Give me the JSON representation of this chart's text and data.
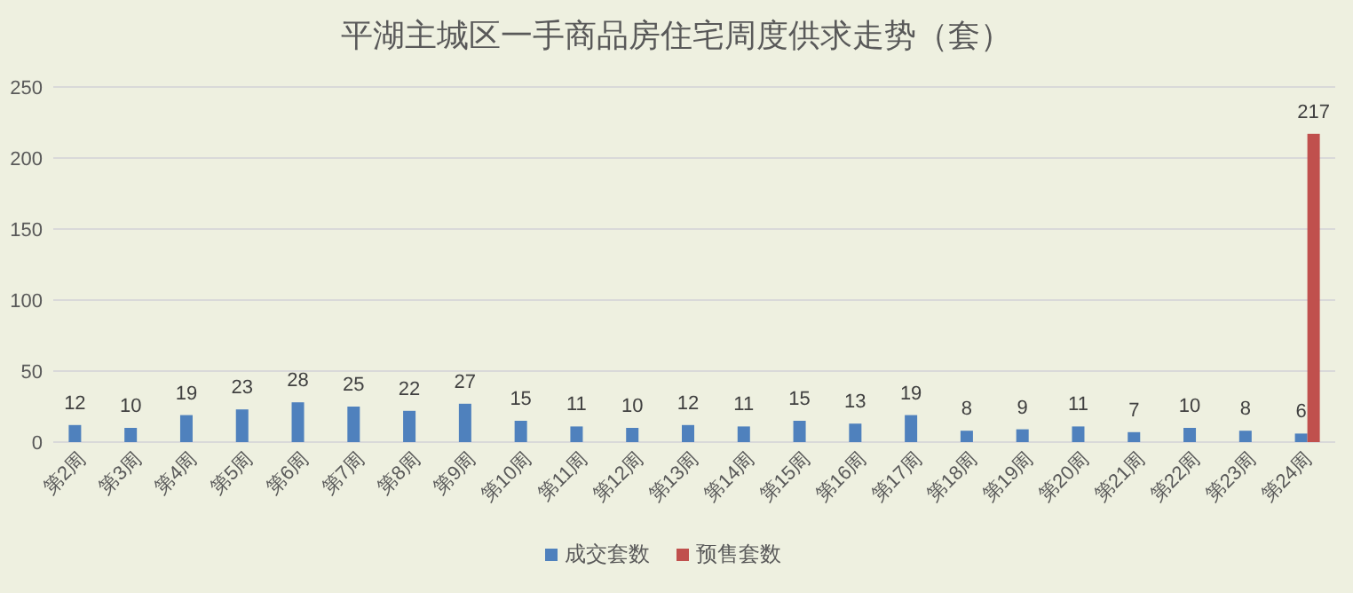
{
  "chart_data": {
    "type": "bar",
    "title": "平湖主城区一手商品房住宅周度供求走势（套）",
    "categories": [
      "第2周",
      "第3周",
      "第4周",
      "第5周",
      "第6周",
      "第7周",
      "第8周",
      "第9周",
      "第10周",
      "第11周",
      "第12周",
      "第13周",
      "第14周",
      "第15周",
      "第16周",
      "第17周",
      "第18周",
      "第19周",
      "第20周",
      "第21周",
      "第22周",
      "第23周",
      "第24周"
    ],
    "series": [
      {
        "name": "成交套数",
        "color": "#4f81bd",
        "values": [
          12,
          10,
          19,
          23,
          28,
          25,
          22,
          27,
          15,
          11,
          10,
          12,
          11,
          15,
          13,
          19,
          8,
          9,
          11,
          7,
          10,
          8,
          6
        ]
      },
      {
        "name": "预售套数",
        "color": "#c0504d",
        "values": [
          null,
          null,
          null,
          null,
          null,
          null,
          null,
          null,
          null,
          null,
          null,
          null,
          null,
          null,
          null,
          null,
          null,
          null,
          null,
          null,
          null,
          null,
          217
        ]
      }
    ],
    "ylim": [
      0,
      250
    ],
    "yticks": [
      0,
      50,
      100,
      150,
      200,
      250
    ],
    "grid": "y",
    "legend": "bottom",
    "data_labels": true
  }
}
